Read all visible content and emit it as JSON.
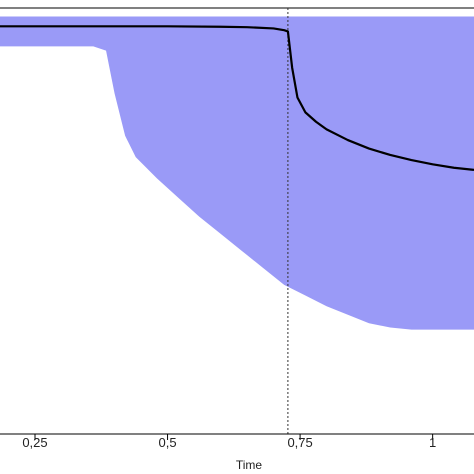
{
  "chart_data": {
    "type": "area",
    "xlabel": "Time",
    "ylabel": "",
    "xlim": [
      0.184,
      1.078
    ],
    "ylim": [
      0,
      1
    ],
    "x_ticks": [
      0.25,
      0.5,
      0.75,
      1
    ],
    "x_tick_labels": [
      "0,25",
      "0,5",
      "0,75",
      "1"
    ],
    "vline": {
      "x": 0.727,
      "style": "dotted"
    },
    "colors": {
      "band": "#9a9af7",
      "line": "#000000",
      "axis": "#000000",
      "vline": "#333333"
    },
    "band": {
      "x": [
        0.184,
        0.36,
        0.384,
        0.4,
        0.42,
        0.44,
        0.48,
        0.52,
        0.56,
        0.6,
        0.64,
        0.68,
        0.72,
        0.76,
        0.8,
        0.84,
        0.88,
        0.92,
        0.96,
        1.0,
        1.04,
        1.078
      ],
      "upper": [
        0.98,
        0.98,
        0.98,
        0.98,
        0.98,
        0.98,
        0.98,
        0.98,
        0.98,
        0.98,
        0.98,
        0.98,
        0.98,
        0.98,
        0.98,
        0.98,
        0.98,
        0.98,
        0.98,
        0.98,
        0.98,
        0.98
      ],
      "lower": [
        0.91,
        0.91,
        0.9,
        0.8,
        0.7,
        0.65,
        0.6,
        0.555,
        0.51,
        0.47,
        0.43,
        0.39,
        0.35,
        0.325,
        0.3,
        0.28,
        0.26,
        0.25,
        0.245,
        0.245,
        0.245,
        0.245
      ]
    },
    "series": [
      {
        "x": [
          0.184,
          0.3,
          0.4,
          0.5,
          0.6,
          0.65,
          0.7,
          0.72,
          0.727,
          0.735,
          0.745,
          0.76,
          0.78,
          0.8,
          0.84,
          0.88,
          0.92,
          0.96,
          1.0,
          1.04,
          1.078
        ],
        "y": [
          0.957,
          0.957,
          0.957,
          0.957,
          0.956,
          0.955,
          0.952,
          0.948,
          0.945,
          0.86,
          0.79,
          0.755,
          0.733,
          0.715,
          0.69,
          0.67,
          0.655,
          0.643,
          0.633,
          0.625,
          0.62
        ]
      }
    ]
  }
}
